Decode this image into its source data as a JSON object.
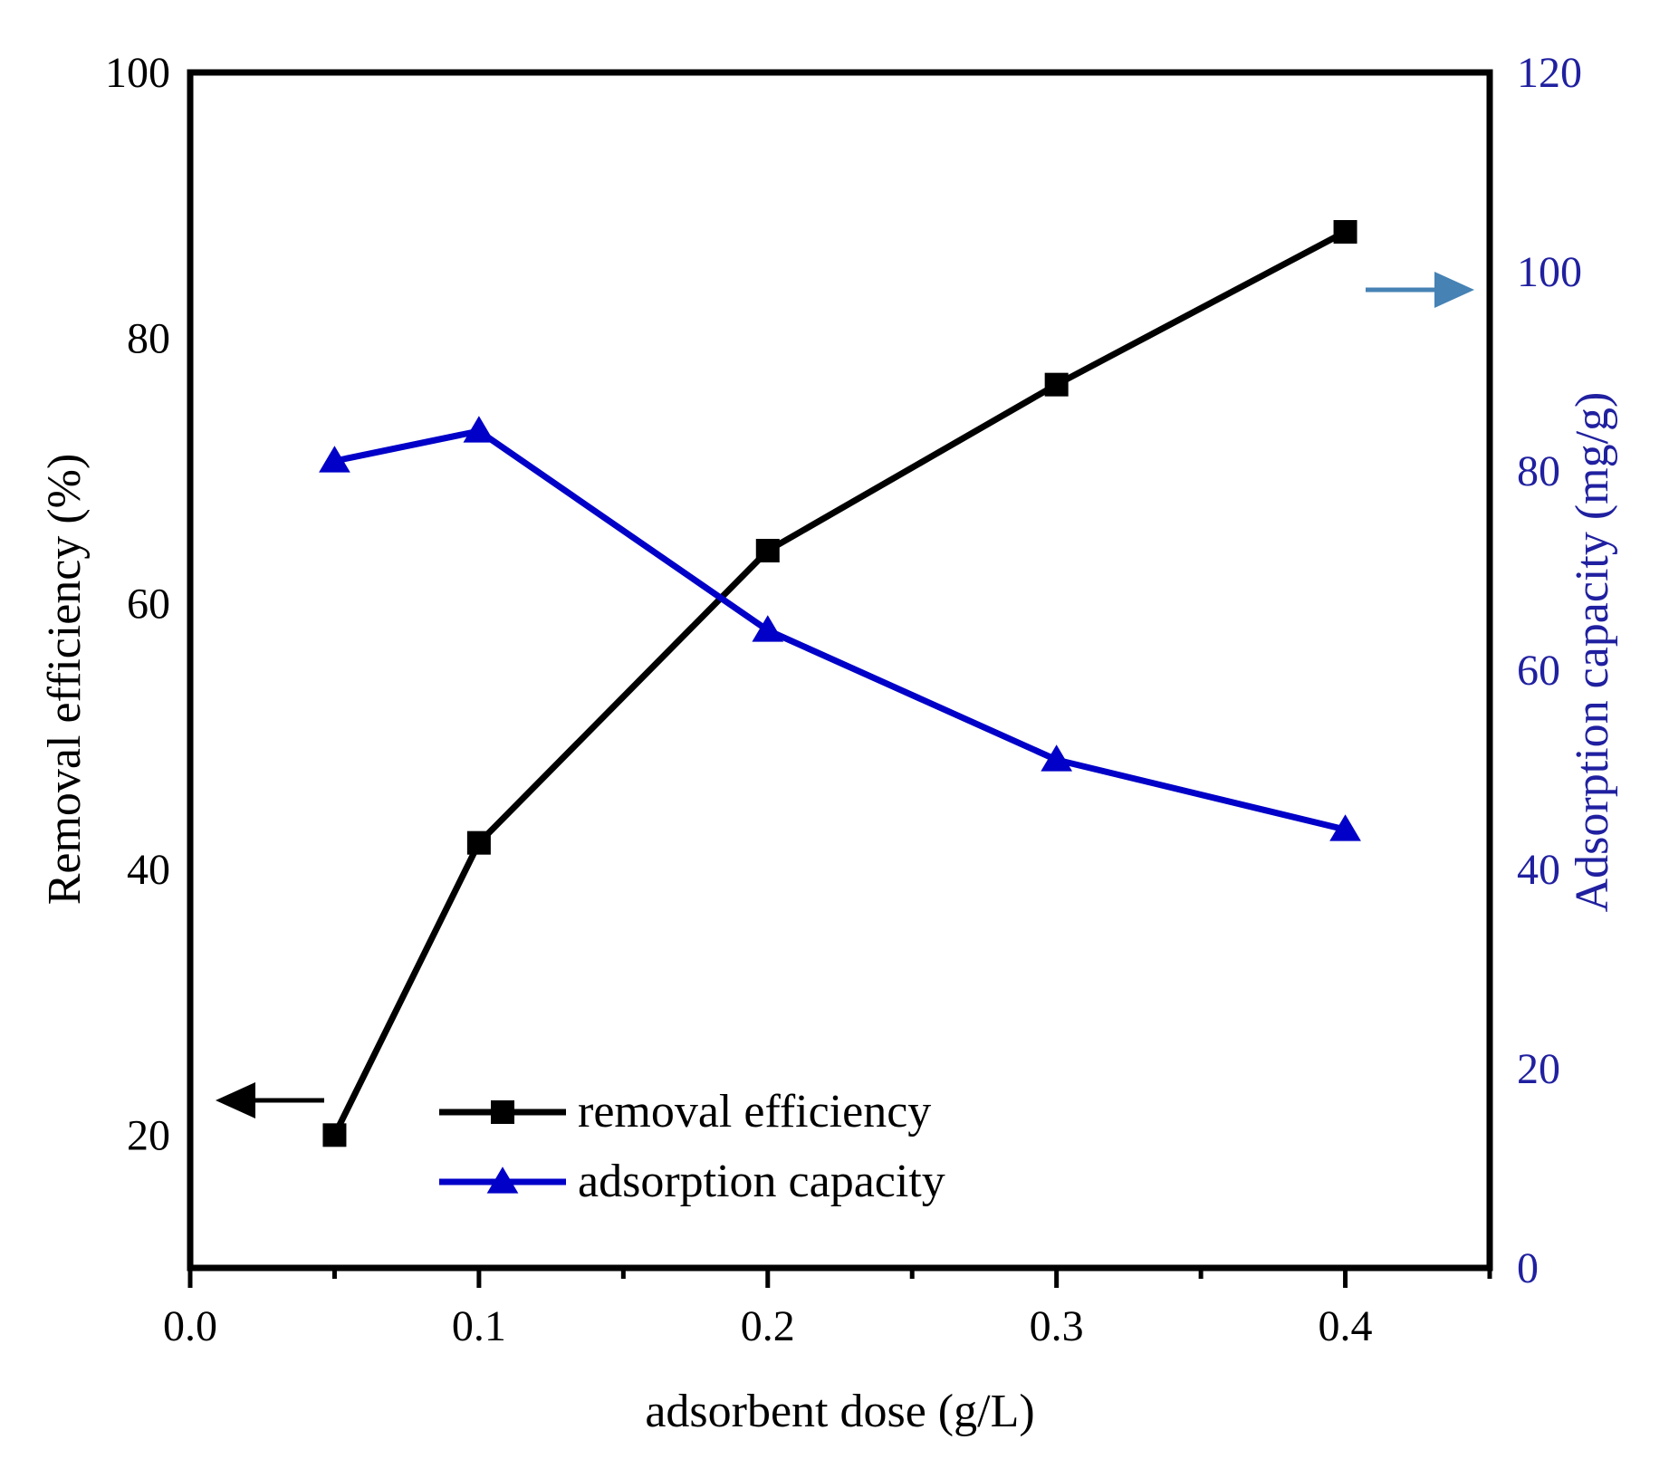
{
  "chart_data": {
    "type": "line",
    "title": "",
    "xlabel": "adsorbent dose (g/L)",
    "ylabel_left": "Removal efficiency (%)",
    "ylabel_right": "Adsorption capacity (mg/g)",
    "xlim": [
      0.0,
      0.45
    ],
    "ylim_left": [
      10,
      100
    ],
    "ylim_right": [
      0,
      120
    ],
    "x_ticks": [
      "0.0",
      "0.1",
      "0.2",
      "0.3",
      "0.4"
    ],
    "y_left_ticks": [
      "20",
      "40",
      "60",
      "80",
      "100"
    ],
    "y_right_ticks": [
      "0",
      "20",
      "40",
      "60",
      "80",
      "100",
      "120"
    ],
    "grid": false,
    "legend_position": "bottom-center",
    "colors": {
      "removal": "#000000",
      "adsorption": "#0000c8",
      "right_axis_text": "#2020a0",
      "right_arrow": "#4682b4"
    },
    "series": [
      {
        "name": "removal efficiency",
        "axis": "left",
        "marker": "square",
        "x": [
          0.05,
          0.1,
          0.2,
          0.3,
          0.4
        ],
        "y": [
          20.0,
          42.0,
          64.0,
          76.5,
          88.0
        ]
      },
      {
        "name": "adsorption capacity",
        "axis": "right",
        "marker": "triangle",
        "x": [
          0.05,
          0.1,
          0.2,
          0.3,
          0.4
        ],
        "y": [
          81,
          84,
          64,
          51,
          44
        ]
      }
    ]
  }
}
